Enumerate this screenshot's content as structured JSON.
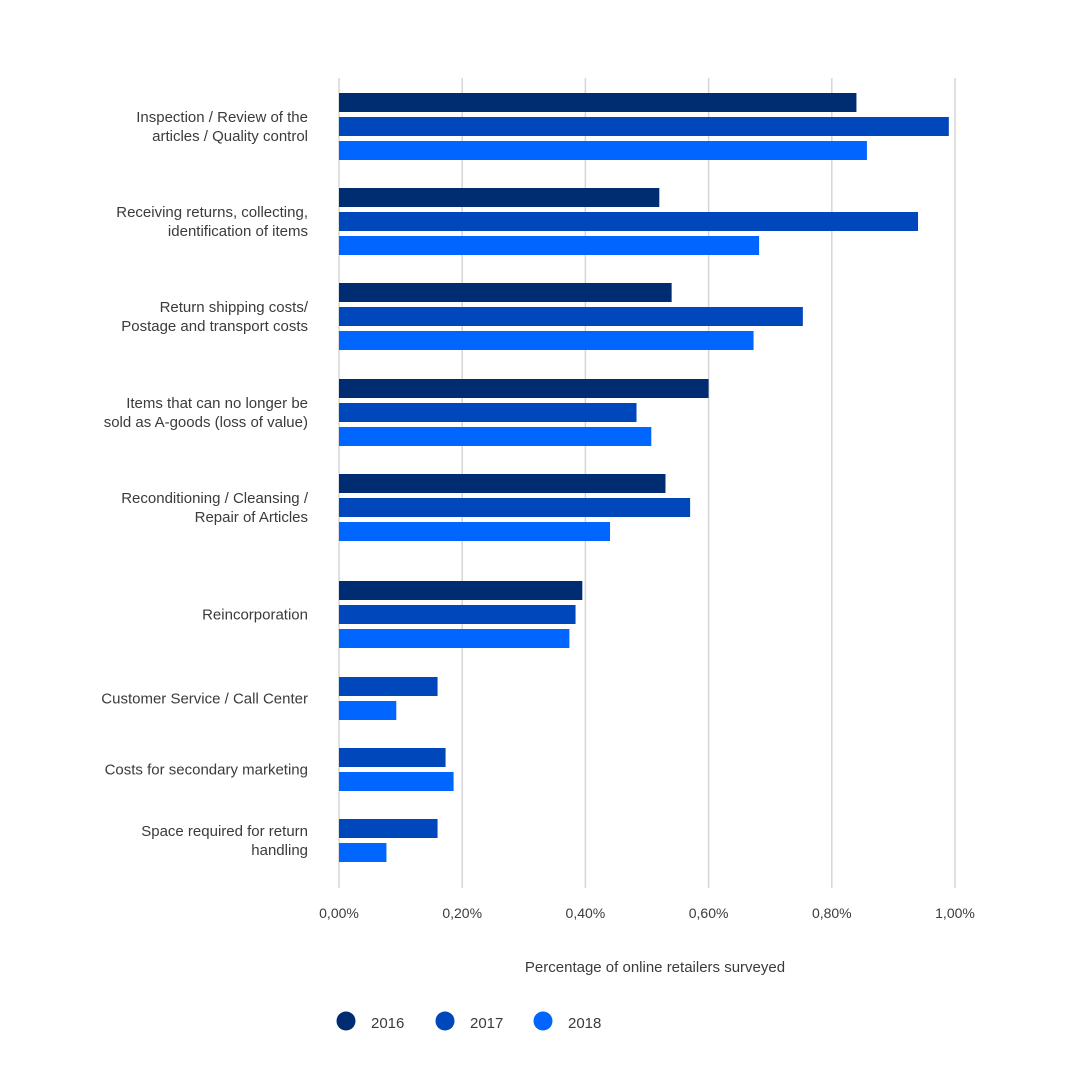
{
  "chart_data": {
    "type": "bar",
    "orientation": "horizontal",
    "categories": [
      [
        "Inspection / Review of the",
        "articles / Quality control"
      ],
      [
        "Receiving returns, collecting,",
        "identification of items"
      ],
      [
        "Return shipping costs/",
        "Postage and transport costs"
      ],
      [
        "Items that can no longer be",
        "sold as A-goods (loss of value)"
      ],
      [
        "Reconditioning / Cleansing /",
        "Repair of Articles"
      ],
      [
        "Reincorporation"
      ],
      [
        "Customer Service / Call Center"
      ],
      [
        "Costs for secondary marketing"
      ],
      [
        "Space required for return",
        "handling"
      ]
    ],
    "series": [
      {
        "name": "2016",
        "color": "#002d72",
        "values": [
          0.0084,
          0.0052,
          0.0054,
          0.006,
          0.0053,
          0.00395,
          null,
          null,
          null
        ]
      },
      {
        "name": "2017",
        "color": "#0047bb",
        "values": [
          0.0099,
          0.0094,
          0.00753,
          0.00483,
          0.0057,
          0.00384,
          0.0016,
          0.00173,
          0.0016
        ]
      },
      {
        "name": "2018",
        "color": "#0066ff",
        "values": [
          0.00857,
          0.00682,
          0.00673,
          0.00507,
          0.0044,
          0.00374,
          0.00093,
          0.00186,
          0.00077
        ]
      }
    ],
    "xlim": [
      0,
      0.01
    ],
    "xticks": [
      "0,00%",
      "0,20%",
      "0,40%",
      "0,60%",
      "0,80%",
      "1,00%"
    ],
    "xlabel": "Percentage of online retailers surveyed",
    "ylabel": "",
    "grid": "vertical",
    "legend": {
      "placement": "bottom-center",
      "marker": "circle"
    }
  }
}
